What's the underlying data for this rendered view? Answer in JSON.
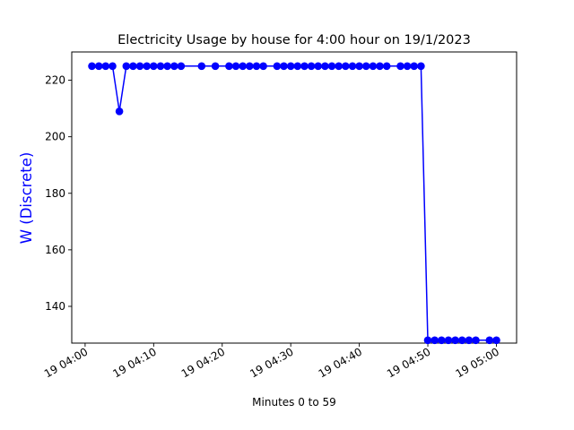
{
  "chart_data": {
    "type": "line",
    "title": "Electricity Usage by house for 4:00 hour on 19/1/2023",
    "xlabel": "Minutes 0 to 59",
    "ylabel": "W (Discrete)",
    "x_tick_labels": [
      "19 04:00",
      "19 04:10",
      "19 04:20",
      "19 04:30",
      "19 04:40",
      "19 04:50",
      "19 05:00"
    ],
    "y_ticks": [
      140,
      160,
      180,
      200,
      220
    ],
    "ylim": [
      127,
      230
    ],
    "grid": false,
    "series_color": "#0000ff",
    "series": [
      {
        "points": [
          {
            "x": "19 04:01",
            "y": 225
          },
          {
            "x": "19 04:02",
            "y": 225
          },
          {
            "x": "19 04:03",
            "y": 225
          },
          {
            "x": "19 04:04",
            "y": 225
          },
          {
            "x": "19 04:05",
            "y": 209
          },
          {
            "x": "19 04:06",
            "y": 225
          },
          {
            "x": "19 04:07",
            "y": 225
          },
          {
            "x": "19 04:08",
            "y": 225
          },
          {
            "x": "19 04:09",
            "y": 225
          },
          {
            "x": "19 04:10",
            "y": 225
          },
          {
            "x": "19 04:11",
            "y": 225
          },
          {
            "x": "19 04:12",
            "y": 225
          },
          {
            "x": "19 04:13",
            "y": 225
          },
          {
            "x": "19 04:14",
            "y": 225
          },
          {
            "x": "19 04:17",
            "y": 225
          },
          {
            "x": "19 04:19",
            "y": 225
          },
          {
            "x": "19 04:21",
            "y": 225
          },
          {
            "x": "19 04:22",
            "y": 225
          },
          {
            "x": "19 04:23",
            "y": 225
          },
          {
            "x": "19 04:24",
            "y": 225
          },
          {
            "x": "19 04:25",
            "y": 225
          },
          {
            "x": "19 04:26",
            "y": 225
          },
          {
            "x": "19 04:28",
            "y": 225
          },
          {
            "x": "19 04:29",
            "y": 225
          },
          {
            "x": "19 04:30",
            "y": 225
          },
          {
            "x": "19 04:31",
            "y": 225
          },
          {
            "x": "19 04:32",
            "y": 225
          },
          {
            "x": "19 04:33",
            "y": 225
          },
          {
            "x": "19 04:34",
            "y": 225
          },
          {
            "x": "19 04:35",
            "y": 225
          },
          {
            "x": "19 04:36",
            "y": 225
          },
          {
            "x": "19 04:37",
            "y": 225
          },
          {
            "x": "19 04:38",
            "y": 225
          },
          {
            "x": "19 04:39",
            "y": 225
          },
          {
            "x": "19 04:40",
            "y": 225
          },
          {
            "x": "19 04:41",
            "y": 225
          },
          {
            "x": "19 04:42",
            "y": 225
          },
          {
            "x": "19 04:43",
            "y": 225
          },
          {
            "x": "19 04:44",
            "y": 225
          },
          {
            "x": "19 04:46",
            "y": 225
          },
          {
            "x": "19 04:47",
            "y": 225
          },
          {
            "x": "19 04:48",
            "y": 225
          },
          {
            "x": "19 04:49",
            "y": 225
          },
          {
            "x": "19 04:50",
            "y": 128
          },
          {
            "x": "19 04:51",
            "y": 128
          },
          {
            "x": "19 04:52",
            "y": 128
          },
          {
            "x": "19 04:53",
            "y": 128
          },
          {
            "x": "19 04:54",
            "y": 128
          },
          {
            "x": "19 04:55",
            "y": 128
          },
          {
            "x": "19 04:56",
            "y": 128
          },
          {
            "x": "19 04:57",
            "y": 128
          },
          {
            "x": "19 04:59",
            "y": 128
          },
          {
            "x": "19 05:00",
            "y": 128
          }
        ]
      }
    ]
  }
}
